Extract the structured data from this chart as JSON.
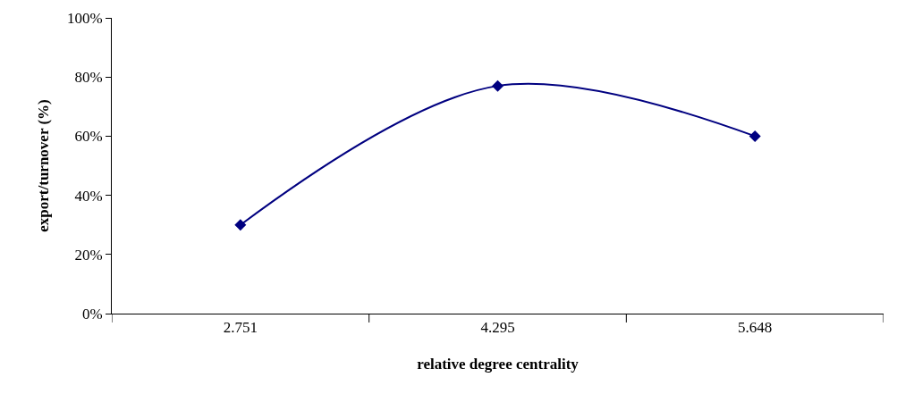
{
  "chart_data": {
    "type": "line",
    "xlabel": "relative degree centrality",
    "ylabel": "export/turnover (%)",
    "categories": [
      "2.751",
      "4.295",
      "5.648"
    ],
    "series": [
      {
        "color": "#000080",
        "values": [
          30,
          77,
          60
        ]
      }
    ],
    "ylim": [
      0,
      100
    ],
    "yticks": [
      {
        "value": 0,
        "label": "0%"
      },
      {
        "value": 20,
        "label": "20%"
      },
      {
        "value": 40,
        "label": "40%"
      },
      {
        "value": 60,
        "label": "60%"
      },
      {
        "value": 80,
        "label": "80%"
      },
      {
        "value": 100,
        "label": "100%"
      }
    ],
    "marker": "diamond",
    "line_style": "solid"
  }
}
